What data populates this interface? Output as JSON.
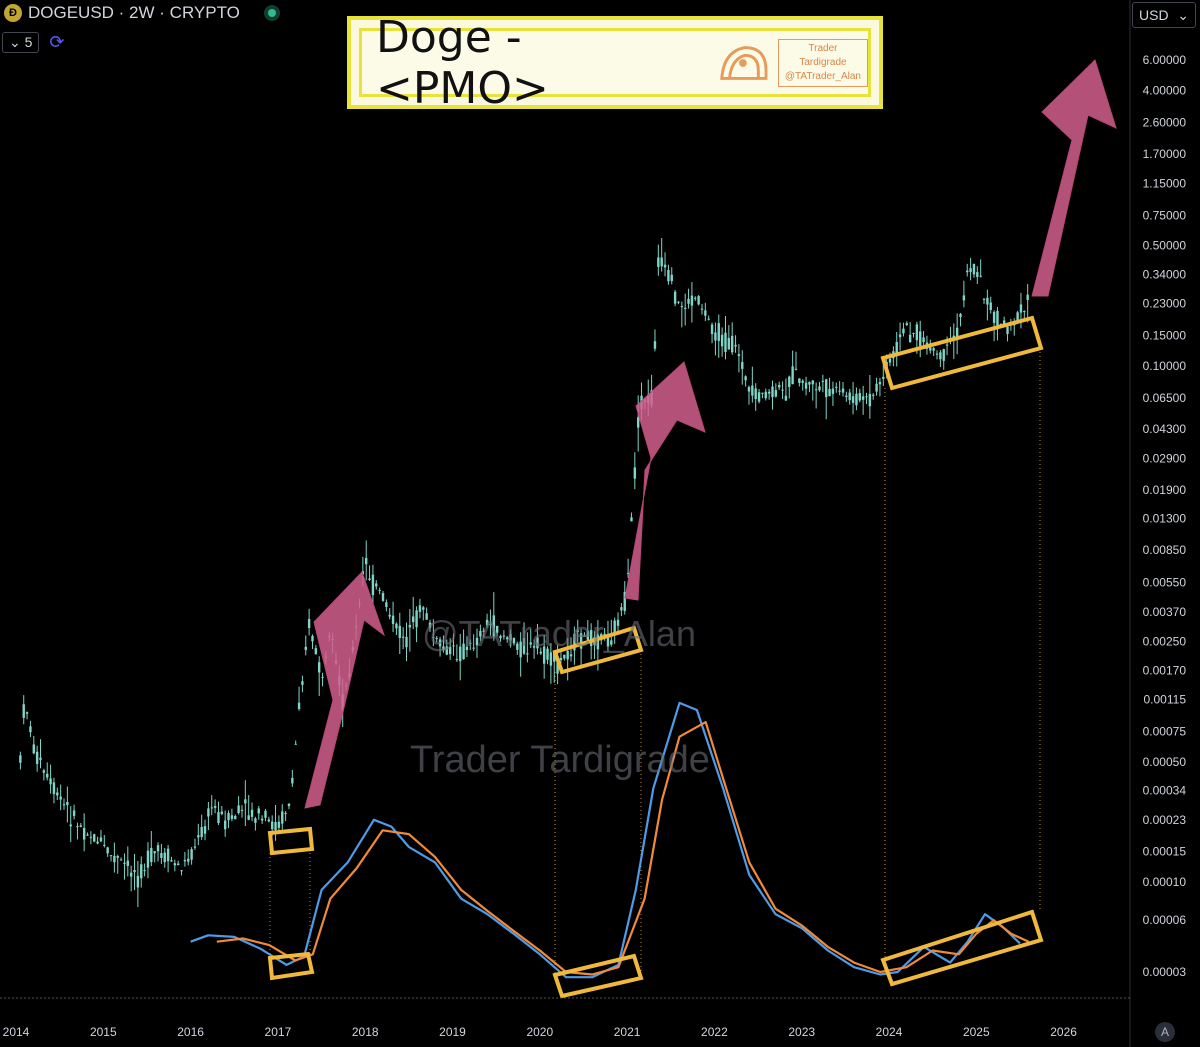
{
  "header": {
    "coin_icon": "doge-coin-icon",
    "symbol_line": "DOGEUSD · 2W · CRYPTO",
    "status": "live-dot-icon",
    "interval_toggle": "5",
    "currency": "USD"
  },
  "title_box": {
    "title": "Doge - <PMO>",
    "brand_line1": "Trader Tardigrade",
    "brand_line2": "@TATrader_Alan"
  },
  "watermarks": [
    "@TATrader_Alan",
    "Trader Tardigrade"
  ],
  "chart_data": {
    "type": "candlestick+line",
    "y_scale": "log",
    "y_ticks": [
      "6.00000",
      "4.00000",
      "2.60000",
      "1.70000",
      "1.15000",
      "0.75000",
      "0.50000",
      "0.34000",
      "0.23000",
      "0.15000",
      "0.10000",
      "0.06500",
      "0.04300",
      "0.02900",
      "0.01900",
      "0.01300",
      "0.00850",
      "0.00550",
      "0.00370",
      "0.00250",
      "0.00170",
      "0.00115",
      "0.00075",
      "0.00050",
      "0.00034",
      "0.00023",
      "0.00015",
      "0.00010",
      "0.00006",
      "0.00003"
    ],
    "x_ticks": [
      "2014",
      "2015",
      "2016",
      "2017",
      "2018",
      "2019",
      "2020",
      "2021",
      "2022",
      "2023",
      "2024",
      "2025",
      "2026"
    ],
    "price_path": [
      [
        2014.05,
        0.0005
      ],
      [
        2014.1,
        0.0012
      ],
      [
        2014.2,
        0.0006
      ],
      [
        2014.35,
        0.0004
      ],
      [
        2014.5,
        0.0003
      ],
      [
        2014.7,
        0.00022
      ],
      [
        2014.9,
        0.00018
      ],
      [
        2015.1,
        0.00014
      ],
      [
        2015.3,
        0.00012
      ],
      [
        2015.4,
        0.00011
      ],
      [
        2015.6,
        0.00015
      ],
      [
        2015.8,
        0.00013
      ],
      [
        2015.9,
        0.00012
      ],
      [
        2016.1,
        0.00018
      ],
      [
        2016.25,
        0.00028
      ],
      [
        2016.4,
        0.00022
      ],
      [
        2016.6,
        0.00026
      ],
      [
        2016.8,
        0.00023
      ],
      [
        2017.0,
        0.00021
      ],
      [
        2017.15,
        0.0003
      ],
      [
        2017.25,
        0.0012
      ],
      [
        2017.35,
        0.0033
      ],
      [
        2017.5,
        0.0015
      ],
      [
        2017.6,
        0.0025
      ],
      [
        2017.75,
        0.0011
      ],
      [
        2017.9,
        0.003
      ],
      [
        2018.0,
        0.0075
      ],
      [
        2018.08,
        0.0055
      ],
      [
        2018.2,
        0.0045
      ],
      [
        2018.35,
        0.003
      ],
      [
        2018.5,
        0.0025
      ],
      [
        2018.65,
        0.0042
      ],
      [
        2018.8,
        0.0025
      ],
      [
        2019.0,
        0.0021
      ],
      [
        2019.2,
        0.0023
      ],
      [
        2019.4,
        0.0032
      ],
      [
        2019.6,
        0.0027
      ],
      [
        2019.8,
        0.0023
      ],
      [
        2020.0,
        0.0022
      ],
      [
        2020.2,
        0.0018
      ],
      [
        2020.4,
        0.0025
      ],
      [
        2020.6,
        0.0027
      ],
      [
        2020.8,
        0.0026
      ],
      [
        2021.0,
        0.0045
      ],
      [
        2021.1,
        0.03
      ],
      [
        2021.15,
        0.06
      ],
      [
        2021.3,
        0.065
      ],
      [
        2021.35,
        0.42
      ],
      [
        2021.5,
        0.3
      ],
      [
        2021.6,
        0.22
      ],
      [
        2021.8,
        0.25
      ],
      [
        2021.95,
        0.18
      ],
      [
        2022.1,
        0.14
      ],
      [
        2022.3,
        0.12
      ],
      [
        2022.4,
        0.065
      ],
      [
        2022.6,
        0.068
      ],
      [
        2022.8,
        0.07
      ],
      [
        2022.9,
        0.09
      ],
      [
        2023.0,
        0.08
      ],
      [
        2023.2,
        0.075
      ],
      [
        2023.4,
        0.07
      ],
      [
        2023.6,
        0.065
      ],
      [
        2023.8,
        0.063
      ],
      [
        2023.95,
        0.09
      ],
      [
        2024.2,
        0.17
      ],
      [
        2024.4,
        0.14
      ],
      [
        2024.6,
        0.11
      ],
      [
        2024.8,
        0.16
      ],
      [
        2024.9,
        0.38
      ],
      [
        2025.0,
        0.36
      ],
      [
        2025.1,
        0.25
      ],
      [
        2025.3,
        0.17
      ],
      [
        2025.5,
        0.19
      ],
      [
        2025.6,
        0.24
      ]
    ],
    "series": [
      {
        "color": "#4e9be8",
        "path": [
          [
            2016.0,
            4.5e-05
          ],
          [
            2016.2,
            4.9e-05
          ],
          [
            2016.5,
            4.8e-05
          ],
          [
            2016.8,
            4.1e-05
          ],
          [
            2017.1,
            3.3e-05
          ],
          [
            2017.3,
            3.7e-05
          ],
          [
            2017.5,
            9e-05
          ],
          [
            2017.8,
            0.00013
          ],
          [
            2018.1,
            0.00023
          ],
          [
            2018.3,
            0.00021
          ],
          [
            2018.5,
            0.00016
          ],
          [
            2018.8,
            0.00013
          ],
          [
            2019.1,
            8e-05
          ],
          [
            2019.4,
            6.5e-05
          ],
          [
            2019.7,
            5e-05
          ],
          [
            2020.0,
            3.8e-05
          ],
          [
            2020.3,
            2.8e-05
          ],
          [
            2020.6,
            2.8e-05
          ],
          [
            2020.9,
            3.3e-05
          ],
          [
            2021.1,
            9e-05
          ],
          [
            2021.3,
            0.00035
          ],
          [
            2021.6,
            0.0011
          ],
          [
            2021.8,
            0.001
          ],
          [
            2022.1,
            0.00035
          ],
          [
            2022.4,
            0.00011
          ],
          [
            2022.7,
            6.5e-05
          ],
          [
            2023.0,
            5.4e-05
          ],
          [
            2023.3,
            4e-05
          ],
          [
            2023.6,
            3.2e-05
          ],
          [
            2023.9,
            2.9e-05
          ],
          [
            2024.1,
            3e-05
          ],
          [
            2024.4,
            4.2e-05
          ],
          [
            2024.7,
            3.4e-05
          ],
          [
            2024.9,
            4.5e-05
          ],
          [
            2025.1,
            6.5e-05
          ],
          [
            2025.3,
            5.5e-05
          ],
          [
            2025.5,
            4.4e-05
          ]
        ]
      },
      {
        "color": "#f08a3a",
        "path": [
          [
            2016.3,
            4.5e-05
          ],
          [
            2016.6,
            4.7e-05
          ],
          [
            2016.9,
            4.3e-05
          ],
          [
            2017.2,
            3.5e-05
          ],
          [
            2017.4,
            3.8e-05
          ],
          [
            2017.6,
            8e-05
          ],
          [
            2017.9,
            0.00012
          ],
          [
            2018.2,
            0.0002
          ],
          [
            2018.5,
            0.00019
          ],
          [
            2018.8,
            0.00014
          ],
          [
            2019.1,
            9e-05
          ],
          [
            2019.4,
            6.8e-05
          ],
          [
            2019.7,
            5.2e-05
          ],
          [
            2020.0,
            4e-05
          ],
          [
            2020.3,
            3e-05
          ],
          [
            2020.6,
            2.9e-05
          ],
          [
            2020.9,
            3.2e-05
          ],
          [
            2021.2,
            8e-05
          ],
          [
            2021.4,
            0.0003
          ],
          [
            2021.6,
            0.0007
          ],
          [
            2021.9,
            0.00085
          ],
          [
            2022.1,
            0.0004
          ],
          [
            2022.4,
            0.00013
          ],
          [
            2022.7,
            7e-05
          ],
          [
            2023.0,
            5.6e-05
          ],
          [
            2023.3,
            4.2e-05
          ],
          [
            2023.6,
            3.4e-05
          ],
          [
            2023.9,
            3e-05
          ],
          [
            2024.2,
            3.2e-05
          ],
          [
            2024.5,
            4e-05
          ],
          [
            2024.8,
            3.8e-05
          ],
          [
            2025.0,
            5e-05
          ],
          [
            2025.2,
            6e-05
          ],
          [
            2025.4,
            5e-05
          ],
          [
            2025.6,
            4.5e-05
          ]
        ]
      }
    ]
  }
}
